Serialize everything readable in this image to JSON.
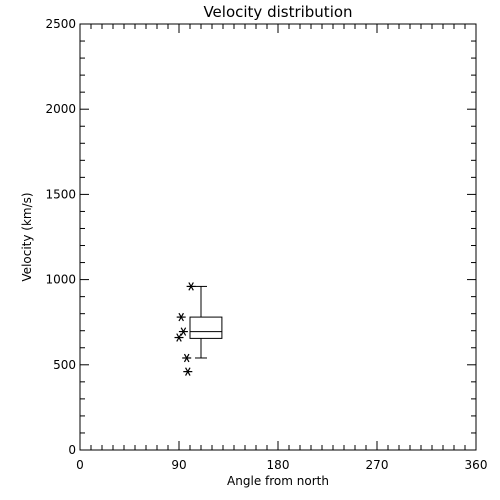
{
  "chart_data": {
    "type": "box",
    "title": "Velocity distribution",
    "xlabel": "Angle from north",
    "ylabel": "Velocity (km/s)",
    "xlim": [
      0,
      360
    ],
    "ylim": [
      0,
      2500
    ],
    "xticks": [
      "0",
      "90",
      "180",
      "270",
      "360"
    ],
    "yticks": [
      "0",
      "500",
      "1000",
      "1500",
      "2000",
      "2500"
    ],
    "grid": false,
    "boxes": [
      {
        "x_center": 110,
        "x_range": [
          100,
          129
        ],
        "whisker_low": 540,
        "q1": 655,
        "median": 695,
        "q3": 780,
        "whisker_high": 960
      }
    ],
    "points": [
      {
        "x": 101,
        "y": 960
      },
      {
        "x": 92,
        "y": 780
      },
      {
        "x": 94,
        "y": 695
      },
      {
        "x": 90,
        "y": 660
      },
      {
        "x": 97,
        "y": 540
      },
      {
        "x": 98,
        "y": 460
      }
    ]
  }
}
